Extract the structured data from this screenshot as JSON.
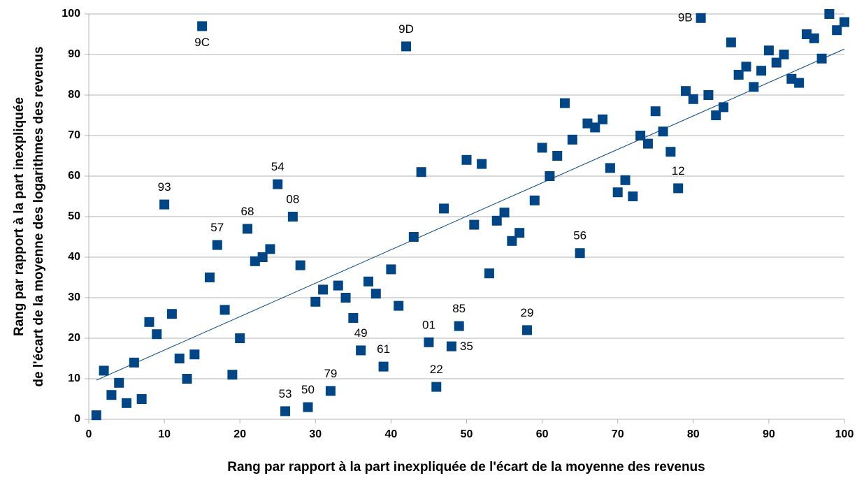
{
  "chart_data": {
    "type": "scatter",
    "x_label": "Rang par rapport à la part inexpliquée de l'écart de la moyenne des revenus",
    "y_label": [
      "Rang par rapport à la part inexpliquée",
      "de l'écart de la moyenne des logarithmes des revenus"
    ],
    "x": [
      1,
      2,
      3,
      4,
      5,
      6,
      7,
      8,
      9,
      10,
      11,
      12,
      13,
      14,
      15,
      16,
      17,
      18,
      19,
      20,
      21,
      22,
      23,
      24,
      25,
      26,
      27,
      28,
      29,
      30,
      31,
      32,
      33,
      34,
      35,
      36,
      37,
      38,
      39,
      40,
      41,
      42,
      43,
      44,
      45,
      46,
      47,
      48,
      49,
      50,
      51,
      52,
      53,
      54,
      55,
      56,
      57,
      58,
      59,
      60,
      61,
      62,
      63,
      64,
      65,
      66,
      67,
      68,
      69,
      70,
      71,
      72,
      73,
      74,
      75,
      76,
      77,
      78,
      79,
      80,
      81,
      82,
      83,
      84,
      85,
      86,
      87,
      88,
      89,
      90,
      91,
      92,
      93,
      94,
      95,
      96,
      97,
      98,
      99,
      100
    ],
    "values": [
      1,
      12,
      6,
      9,
      4,
      14,
      5,
      24,
      21,
      53,
      26,
      15,
      10,
      16,
      97,
      35,
      43,
      27,
      11,
      20,
      47,
      39,
      40,
      42,
      58,
      2,
      50,
      38,
      3,
      29,
      32,
      7,
      33,
      30,
      25,
      17,
      34,
      31,
      13,
      37,
      28,
      92,
      45,
      61,
      19,
      8,
      52,
      18,
      23,
      64,
      48,
      63,
      36,
      49,
      51,
      44,
      46,
      22,
      54,
      67,
      60,
      65,
      78,
      69,
      41,
      73,
      72,
      74,
      62,
      56,
      59,
      55,
      70,
      68,
      76,
      71,
      66,
      57,
      81,
      79,
      99,
      80,
      75,
      77,
      93,
      85,
      87,
      82,
      86,
      91,
      88,
      90,
      84,
      83,
      95,
      94,
      89,
      100,
      96,
      98
    ],
    "labels": [
      null,
      null,
      null,
      null,
      null,
      null,
      null,
      null,
      null,
      "93",
      null,
      null,
      null,
      null,
      "9C",
      null,
      "57",
      null,
      null,
      null,
      "68",
      null,
      null,
      null,
      "54",
      "53",
      "08",
      null,
      "50",
      null,
      null,
      "79",
      null,
      null,
      null,
      "49",
      null,
      null,
      "61",
      null,
      null,
      "9D",
      null,
      null,
      "01",
      "22",
      null,
      "35",
      "85",
      null,
      null,
      null,
      null,
      null,
      null,
      null,
      null,
      "29",
      null,
      null,
      null,
      null,
      null,
      null,
      "56",
      null,
      null,
      null,
      null,
      null,
      null,
      null,
      null,
      null,
      null,
      null,
      null,
      "12",
      null,
      null,
      "9B",
      null,
      null,
      null,
      null,
      null,
      null,
      null,
      null,
      null,
      null,
      null,
      null,
      null,
      null,
      null,
      null,
      null,
      null,
      null
    ],
    "color": "#004586",
    "trendline": true,
    "xlim": [
      0,
      100
    ],
    "xticks": [
      0,
      10,
      20,
      30,
      40,
      50,
      60,
      70,
      80,
      90,
      100
    ],
    "ylim": [
      0,
      100
    ],
    "yticks": [
      0,
      10,
      20,
      30,
      40,
      50,
      60,
      70,
      80,
      90,
      100
    ],
    "grid": true
  }
}
